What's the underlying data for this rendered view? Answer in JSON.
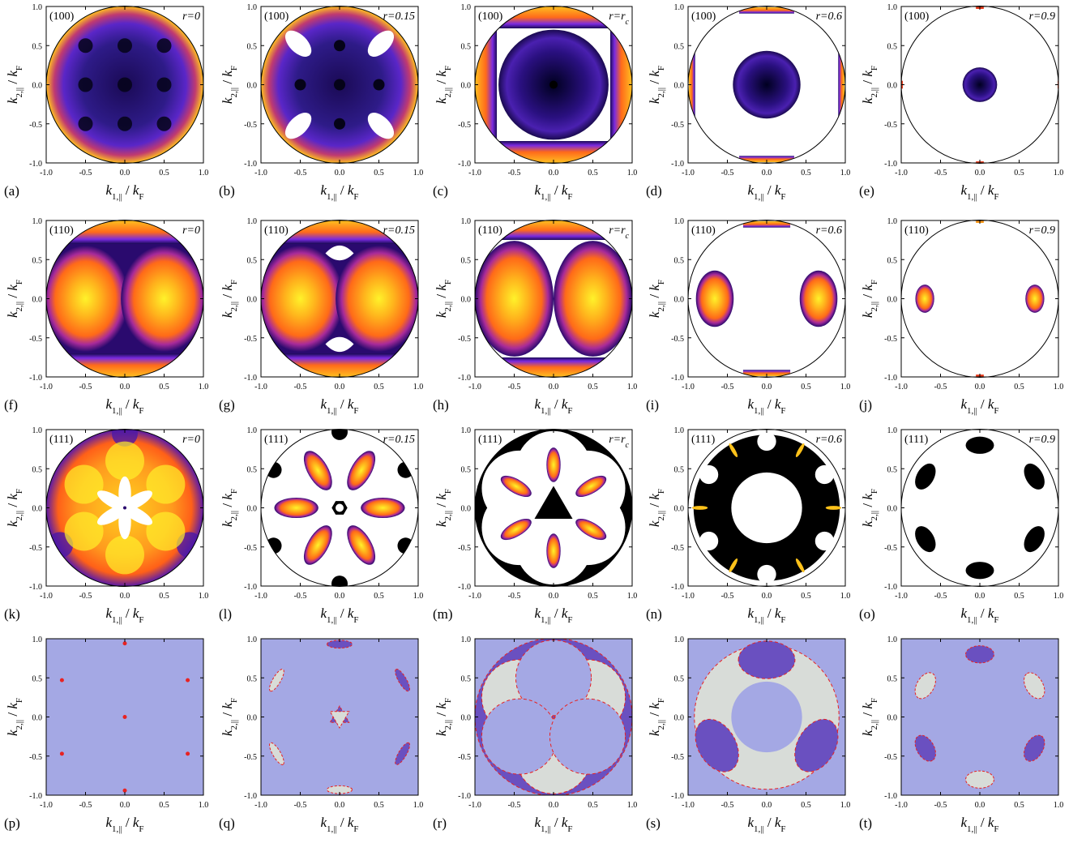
{
  "figure": {
    "xlabel_parts": [
      "k",
      "1,||",
      " / ",
      "k",
      "F"
    ],
    "ylabel_parts": [
      "k",
      "2,||",
      " / ",
      "k",
      "F"
    ],
    "xticks": [
      "-1.0",
      "-0.5",
      "0.0",
      "0.5",
      "1.0"
    ],
    "yticks": [
      "1.0",
      "0.5",
      "0.0",
      "-0.5",
      "-1.0"
    ]
  },
  "chart_data": [
    {
      "type": "heatmap",
      "panel": "(a)",
      "face": "(100)",
      "r": "r=0",
      "axes_range": [
        -1,
        1
      ]
    },
    {
      "type": "heatmap",
      "panel": "(b)",
      "face": "(100)",
      "r": "r=0.15",
      "axes_range": [
        -1,
        1
      ]
    },
    {
      "type": "heatmap",
      "panel": "(c)",
      "face": "(100)",
      "r": "r=r",
      "r_sub": "c",
      "axes_range": [
        -1,
        1
      ]
    },
    {
      "type": "heatmap",
      "panel": "(d)",
      "face": "(100)",
      "r": "r=0.6",
      "axes_range": [
        -1,
        1
      ]
    },
    {
      "type": "heatmap",
      "panel": "(e)",
      "face": "(100)",
      "r": "r=0.9",
      "axes_range": [
        -1,
        1
      ]
    },
    {
      "type": "heatmap",
      "panel": "(f)",
      "face": "(110)",
      "r": "r=0",
      "axes_range": [
        -1,
        1
      ]
    },
    {
      "type": "heatmap",
      "panel": "(g)",
      "face": "(110)",
      "r": "r=0.15",
      "axes_range": [
        -1,
        1
      ]
    },
    {
      "type": "heatmap",
      "panel": "(h)",
      "face": "(110)",
      "r": "r=r",
      "r_sub": "c",
      "axes_range": [
        -1,
        1
      ]
    },
    {
      "type": "heatmap",
      "panel": "(i)",
      "face": "(110)",
      "r": "r=0.6",
      "axes_range": [
        -1,
        1
      ]
    },
    {
      "type": "heatmap",
      "panel": "(j)",
      "face": "(110)",
      "r": "r=0.9",
      "axes_range": [
        -1,
        1
      ]
    },
    {
      "type": "heatmap",
      "panel": "(k)",
      "face": "(111)",
      "r": "r=0",
      "axes_range": [
        -1,
        1
      ]
    },
    {
      "type": "heatmap",
      "panel": "(l)",
      "face": "(111)",
      "r": "r=0.15",
      "axes_range": [
        -1,
        1
      ]
    },
    {
      "type": "heatmap",
      "panel": "(m)",
      "face": "(111)",
      "r": "r=r",
      "r_sub": "c",
      "axes_range": [
        -1,
        1
      ]
    },
    {
      "type": "heatmap",
      "panel": "(n)",
      "face": "(111)",
      "r": "r=0.6",
      "axes_range": [
        -1,
        1
      ]
    },
    {
      "type": "heatmap",
      "panel": "(o)",
      "face": "(111)",
      "r": "r=0.9",
      "axes_range": [
        -1,
        1
      ]
    },
    {
      "type": "heatmap",
      "panel": "(p)",
      "face": "",
      "r": "",
      "axes_range": [
        -1,
        1
      ]
    },
    {
      "type": "heatmap",
      "panel": "(q)",
      "face": "",
      "r": "",
      "axes_range": [
        -1,
        1
      ]
    },
    {
      "type": "heatmap",
      "panel": "(r)",
      "face": "",
      "r": "",
      "axes_range": [
        -1,
        1
      ]
    },
    {
      "type": "heatmap",
      "panel": "(s)",
      "face": "",
      "r": "",
      "axes_range": [
        -1,
        1
      ]
    },
    {
      "type": "heatmap",
      "panel": "(t)",
      "face": "",
      "r": "",
      "axes_range": [
        -1,
        1
      ]
    }
  ],
  "colors": {
    "black": "#000000",
    "indigo": "#2a0a6e",
    "violet": "#7a2ae0",
    "orange": "#ff7a1a",
    "yellow": "#fff02a",
    "red": "#e82222",
    "lavender": "#a4a8e4",
    "purple": "#6a50c0",
    "lightgray": "#d8dcd8"
  }
}
